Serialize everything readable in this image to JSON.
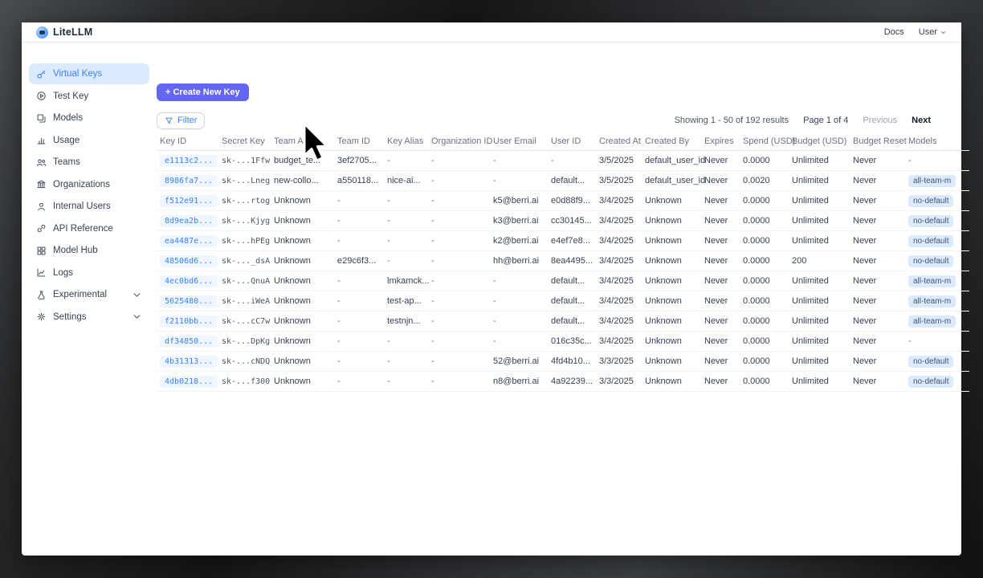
{
  "topbar": {
    "brand": "LiteLLM",
    "docs_link": "Docs",
    "user_menu": "User"
  },
  "sidebar": {
    "items": [
      {
        "label": "Virtual Keys",
        "icon": "key-icon",
        "active": true,
        "expandable": false
      },
      {
        "label": "Test Key",
        "icon": "play-circle-icon",
        "active": false,
        "expandable": false
      },
      {
        "label": "Models",
        "icon": "cube-stack-icon",
        "active": false,
        "expandable": false
      },
      {
        "label": "Usage",
        "icon": "bar-chart-icon",
        "active": false,
        "expandable": false
      },
      {
        "label": "Teams",
        "icon": "users-icon",
        "active": false,
        "expandable": false
      },
      {
        "label": "Organizations",
        "icon": "bank-icon",
        "active": false,
        "expandable": false
      },
      {
        "label": "Internal Users",
        "icon": "user-icon",
        "active": false,
        "expandable": false
      },
      {
        "label": "API Reference",
        "icon": "link-icon",
        "active": false,
        "expandable": false
      },
      {
        "label": "Model Hub",
        "icon": "grid-icon",
        "active": false,
        "expandable": false
      },
      {
        "label": "Logs",
        "icon": "line-chart-icon",
        "active": false,
        "expandable": false
      },
      {
        "label": "Experimental",
        "icon": "flask-icon",
        "active": false,
        "expandable": true
      },
      {
        "label": "Settings",
        "icon": "gear-icon",
        "active": false,
        "expandable": true
      }
    ]
  },
  "toolbar": {
    "create_button": "+ Create New Key",
    "filter_button": "Filter"
  },
  "pagination": {
    "showing": "Showing 1 - 50 of 192 results",
    "page": "Page 1 of 4",
    "previous": "Previous",
    "next": "Next"
  },
  "table": {
    "columns": [
      {
        "key": "key_id",
        "label": "Key ID",
        "width": 77
      },
      {
        "key": "secret_key",
        "label": "Secret Key",
        "width": 65
      },
      {
        "key": "team_alias",
        "label": "Team Alias",
        "width": 79
      },
      {
        "key": "team_id",
        "label": "Team ID",
        "width": 62
      },
      {
        "key": "key_alias",
        "label": "Key Alias",
        "width": 55
      },
      {
        "key": "organization_id",
        "label": "Organization ID",
        "width": 77
      },
      {
        "key": "user_email",
        "label": "User Email",
        "width": 72
      },
      {
        "key": "user_id",
        "label": "User ID",
        "width": 60
      },
      {
        "key": "created_at",
        "label": "Created At",
        "width": 57
      },
      {
        "key": "created_by",
        "label": "Created By",
        "width": 74
      },
      {
        "key": "expires",
        "label": "Expires",
        "width": 48
      },
      {
        "key": "spend_usd",
        "label": "Spend (USD)",
        "width": 61
      },
      {
        "key": "budget_usd",
        "label": "Budget (USD)",
        "width": 76
      },
      {
        "key": "budget_reset",
        "label": "Budget Reset",
        "width": 69
      },
      {
        "key": "models",
        "label": "Models",
        "width": 80
      }
    ],
    "rows": [
      [
        "e1113c2...",
        "sk-...1Ffw",
        "budget_te...",
        "3ef2705...",
        "-",
        "-",
        "-",
        "-",
        "3/5/2025",
        "default_user_id",
        "Never",
        "0.0000",
        "Unlimited",
        "Never",
        "-"
      ],
      [
        "8986fa7...",
        "sk-...Lneg",
        "new-collo...",
        "a550118...",
        "nice-ai...",
        "-",
        "-",
        "default...",
        "3/5/2025",
        "default_user_id",
        "Never",
        "0.0020",
        "Unlimited",
        "Never",
        "all-team-m"
      ],
      [
        "f512e91...",
        "sk-...rtog",
        "Unknown",
        "-",
        "-",
        "-",
        "k5@berri.ai",
        "e0d88f9...",
        "3/4/2025",
        "Unknown",
        "Never",
        "0.0000",
        "Unlimited",
        "Never",
        "no-default"
      ],
      [
        "8d9ea2b...",
        "sk-...Kjyg",
        "Unknown",
        "-",
        "-",
        "-",
        "k3@berri.ai",
        "cc30145...",
        "3/4/2025",
        "Unknown",
        "Never",
        "0.0000",
        "Unlimited",
        "Never",
        "no-default"
      ],
      [
        "ea4487e...",
        "sk-...hPEg",
        "Unknown",
        "-",
        "-",
        "-",
        "k2@berri.ai",
        "e4ef7e8...",
        "3/4/2025",
        "Unknown",
        "Never",
        "0.0000",
        "Unlimited",
        "Never",
        "no-default"
      ],
      [
        "48506d6...",
        "sk-..._dsA",
        "Unknown",
        "e29c6f3...",
        "-",
        "-",
        "hh@berri.ai",
        "8ea4495...",
        "3/4/2025",
        "Unknown",
        "Never",
        "0.0000",
        "200",
        "Never",
        "no-default"
      ],
      [
        "4ec0bd6...",
        "sk-...QnuA",
        "Unknown",
        "-",
        "lmkamck...",
        "-",
        "-",
        "default...",
        "3/4/2025",
        "Unknown",
        "Never",
        "0.0000",
        "Unlimited",
        "Never",
        "all-team-m"
      ],
      [
        "5625480...",
        "sk-...iWeA",
        "Unknown",
        "-",
        "test-ap...",
        "-",
        "-",
        "default...",
        "3/4/2025",
        "Unknown",
        "Never",
        "0.0000",
        "Unlimited",
        "Never",
        "all-team-m"
      ],
      [
        "f2110bb...",
        "sk-...cC7w",
        "Unknown",
        "-",
        "testnjn...",
        "-",
        "-",
        "default...",
        "3/4/2025",
        "Unknown",
        "Never",
        "0.0000",
        "Unlimited",
        "Never",
        "all-team-m"
      ],
      [
        "df34850...",
        "sk-...DpKg",
        "Unknown",
        "-",
        "-",
        "-",
        "-",
        "016c35c...",
        "3/4/2025",
        "Unknown",
        "Never",
        "0.0000",
        "Unlimited",
        "Never",
        "-"
      ],
      [
        "4b31313...",
        "sk-...cNDQ",
        "Unknown",
        "-",
        "-",
        "-",
        "52@berri.ai",
        "4fd4b10...",
        "3/3/2025",
        "Unknown",
        "Never",
        "0.0000",
        "Unlimited",
        "Never",
        "no-default"
      ],
      [
        "4db0218...",
        "sk-...f300",
        "Unknown",
        "-",
        "-",
        "-",
        "n8@berri.ai",
        "4a92239...",
        "3/3/2025",
        "Unknown",
        "Never",
        "0.0000",
        "Unlimited",
        "Never",
        "no-default"
      ]
    ]
  },
  "colors": {
    "accent_purple": "#6366f1",
    "accent_blue": "#3b82f6",
    "active_item_bg": "#dbeafe",
    "keyid_badge_bg": "#eff6ff",
    "model_badge_bg": "#dbeafe",
    "frame_dark": "#1a1b1d"
  }
}
